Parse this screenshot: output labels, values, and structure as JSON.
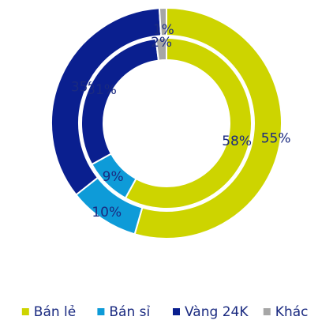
{
  "chart_data": {
    "type": "donut",
    "categories": [
      "Bán lẻ",
      "Bán sỉ",
      "Vàng 24K",
      "Khác"
    ],
    "colors": [
      "#cdd400",
      "#0e9bd8",
      "#0a1f8f",
      "#a6a6a6"
    ],
    "series": [
      {
        "values": [
          55,
          10,
          35,
          1
        ],
        "value_labels": [
          "55%",
          "10%",
          "35%",
          "1%"
        ]
      },
      {
        "values": [
          58,
          9,
          31,
          2
        ],
        "value_labels": [
          "58%",
          "9%",
          "31%",
          "2%"
        ]
      }
    ],
    "legend": "bottom"
  }
}
